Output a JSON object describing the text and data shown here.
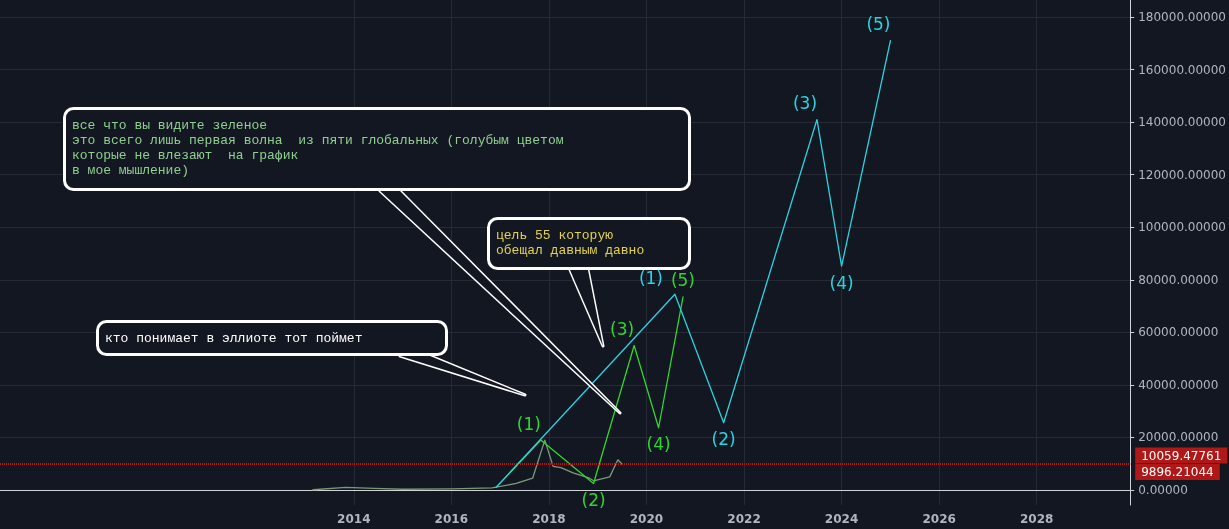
{
  "chart_data": {
    "type": "line",
    "xlim": [
      "2006-10",
      "2029-12"
    ],
    "xticks": [
      "2014",
      "2016",
      "2018",
      "2020",
      "2022",
      "2024",
      "2026",
      "2028"
    ],
    "ylim": [
      -5700,
      186500
    ],
    "yticks": [
      {
        "value": 0,
        "label": "0.00000"
      },
      {
        "value": 20000,
        "label": "20000.00000"
      },
      {
        "value": 40000,
        "label": "40000.00000"
      },
      {
        "value": 60000,
        "label": "60000.00000"
      },
      {
        "value": 80000,
        "label": "80000.00000"
      },
      {
        "value": 100000,
        "label": "100000.00000"
      },
      {
        "value": 120000,
        "label": "120000.00000"
      },
      {
        "value": 140000,
        "label": "140000.00000"
      },
      {
        "value": 160000,
        "label": "160000.00000"
      },
      {
        "value": 180000,
        "label": "180000.00000"
      }
    ],
    "grid": true,
    "marker": "none",
    "series": [
      {
        "color": "#7a9a7a",
        "x": [
          "2013-03",
          "2013-11",
          "2014-06",
          "2015-01",
          "2016-01",
          "2016-11",
          "2017-05",
          "2017-09",
          "2017-12",
          "2018-02",
          "2018-04",
          "2018-07",
          "2018-11",
          "2018-12",
          "2019-04",
          "2019-06",
          "2019-07"
        ],
        "values": [
          100,
          1000,
          600,
          300,
          400,
          800,
          2500,
          4500,
          19000,
          9000,
          8500,
          6500,
          4500,
          3500,
          5000,
          11500,
          9900
        ]
      },
      {
        "color": "#2fd62f",
        "x": [
          "2016-12",
          "2017-11",
          "2018-12",
          "2019-10",
          "2020-04",
          "2020-10"
        ],
        "values": [
          1000,
          19000,
          2500,
          55000,
          23700,
          73500
        ]
      },
      {
        "color": "#2bd3e0",
        "x": [
          "2016-12",
          "2020-08",
          "2021-08",
          "2023-07",
          "2024-01",
          "2025-01"
        ],
        "values": [
          1000,
          74500,
          25600,
          141000,
          85200,
          171000
        ]
      }
    ],
    "ref_lines": [
      {
        "axis": "y",
        "value": 10059.47761,
        "label": "10059.47761",
        "color": "#b01818",
        "line_style": "dotted"
      },
      {
        "axis": "y",
        "value": 9896.21044,
        "label": "9896.21044",
        "color": "#b01818",
        "line_style": "dotted"
      }
    ],
    "annotations": [
      {
        "text": "(1)",
        "x": "2017-11",
        "y": 19000
      },
      {
        "text": "(2)",
        "x": "2018-12",
        "y": 2500
      },
      {
        "text": "(3)",
        "x": "2019-10",
        "y": 55000
      },
      {
        "text": "(4)",
        "x": "2020-04",
        "y": 23700
      },
      {
        "text": "(5)",
        "x": "2020-10",
        "y": 73500
      },
      {
        "text": "(1)",
        "x": "2020-08",
        "y": 74500
      },
      {
        "text": "(2)",
        "x": "2021-08",
        "y": 25600
      },
      {
        "text": "(3)",
        "x": "2023-07",
        "y": 141000
      },
      {
        "text": "(4)",
        "x": "2024-01",
        "y": 85200
      },
      {
        "text": "(5)",
        "x": "2025-01",
        "y": 171000
      },
      "все что вы видите зеленое\nэто всего лишь первая волна  из пяти глобальных (голубым цветом\nкоторые не влезают  на график\nв мое мышление)",
      "цель 55 которую\nобещал давным давно",
      "кто понимает в эллиоте тот поймет"
    ]
  }
}
